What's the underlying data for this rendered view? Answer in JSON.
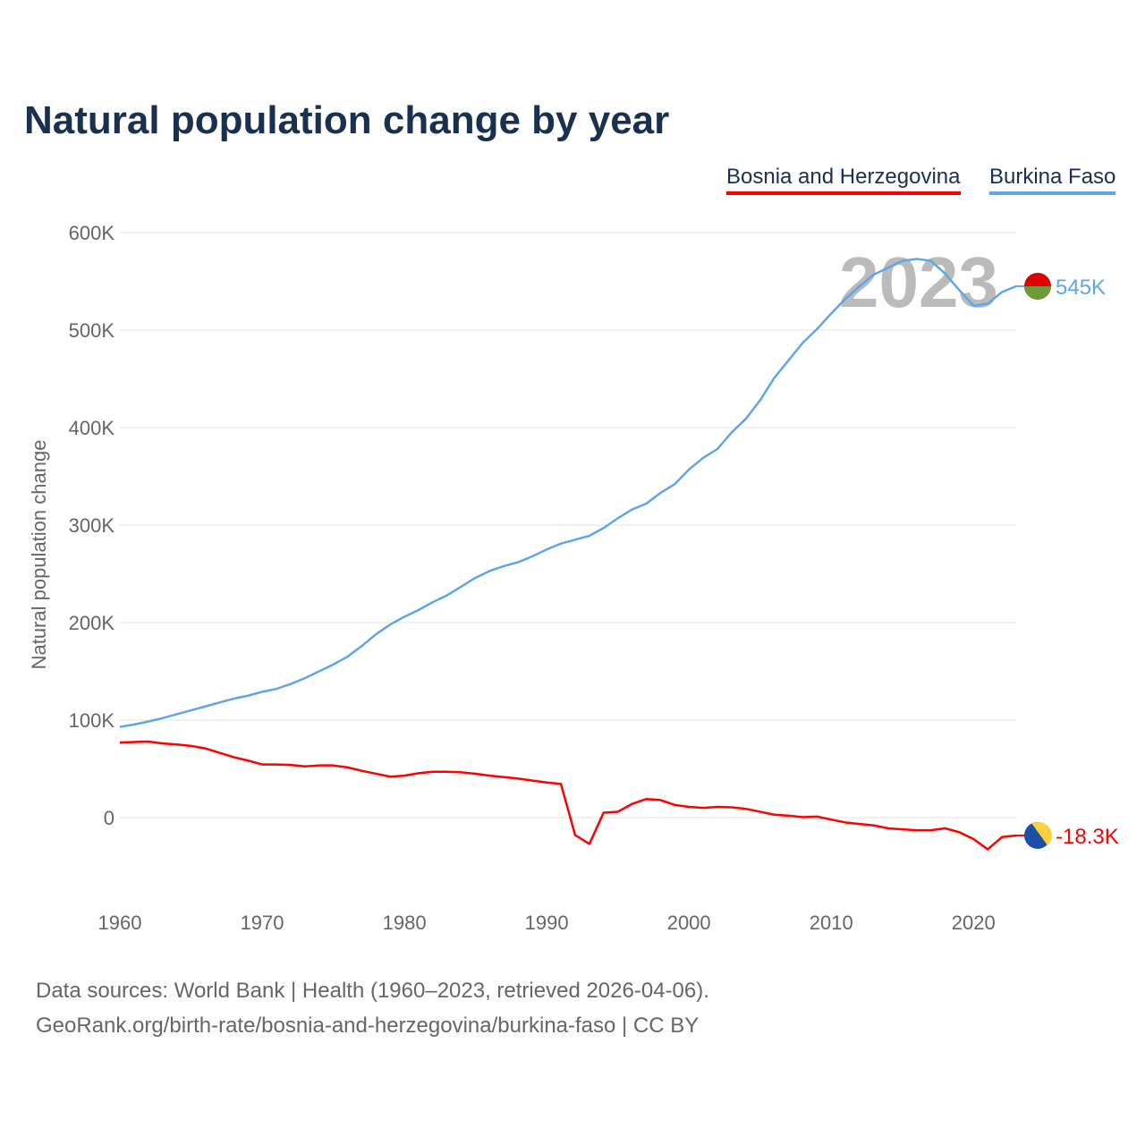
{
  "chart_data": {
    "type": "line",
    "title": "Natural population change by year",
    "ylabel": "Natural population change",
    "xlabel": "",
    "ylim": [
      -90000,
      600000
    ],
    "xlim": [
      1960,
      2023
    ],
    "yticks": [
      {
        "v": 0,
        "label": "0"
      },
      {
        "v": 100000,
        "label": "100K"
      },
      {
        "v": 200000,
        "label": "200K"
      },
      {
        "v": 300000,
        "label": "300K"
      },
      {
        "v": 400000,
        "label": "400K"
      },
      {
        "v": 500000,
        "label": "500K"
      },
      {
        "v": 600000,
        "label": "600K"
      }
    ],
    "xticks": [
      {
        "v": 1960,
        "label": "1960"
      },
      {
        "v": 1970,
        "label": "1970"
      },
      {
        "v": 1980,
        "label": "1980"
      },
      {
        "v": 1990,
        "label": "1990"
      },
      {
        "v": 2000,
        "label": "2000"
      },
      {
        "v": 2010,
        "label": "2010"
      },
      {
        "v": 2020,
        "label": "2020"
      }
    ],
    "year_watermark": "2023",
    "legend_placement": "top-right",
    "x_start": 1960,
    "series": [
      {
        "name": "Bosnia and Herzegovina",
        "color": "#ff0000",
        "end_label": "-18.3K",
        "values": [
          77000,
          77500,
          78000,
          76000,
          75000,
          73500,
          71000,
          66500,
          62000,
          58500,
          54500,
          54500,
          54000,
          52500,
          53500,
          53500,
          51500,
          48000,
          45000,
          42000,
          43000,
          45500,
          47000,
          47000,
          46500,
          45000,
          43000,
          41500,
          40000,
          38000,
          36000,
          34500,
          -18000,
          -27000,
          5000,
          6000,
          14000,
          19000,
          18000,
          13000,
          11000,
          10000,
          11000,
          10500,
          9000,
          6000,
          3000,
          2000,
          500,
          1000,
          -2000,
          -5000,
          -6500,
          -8000,
          -11000,
          -12000,
          -13000,
          -13000,
          -11000,
          -15000,
          -22000,
          -32500,
          -20000,
          -18300
        ]
      },
      {
        "name": "Burkina Faso",
        "color": "#5ea6ea",
        "end_label": "545K",
        "values": [
          93000,
          95500,
          98500,
          102000,
          106000,
          110000,
          114000,
          118000,
          122000,
          125000,
          129000,
          132000,
          137000,
          143000,
          150000,
          157000,
          165000,
          176000,
          188000,
          198000,
          206000,
          213000,
          221000,
          228000,
          237000,
          246000,
          253000,
          258000,
          262000,
          268000,
          275000,
          281000,
          285000,
          289000,
          297000,
          307000,
          316000,
          322000,
          333000,
          342000,
          357000,
          369000,
          378000,
          395000,
          409000,
          428000,
          451000,
          469000,
          487000,
          501000,
          517000,
          532000,
          545000,
          557000,
          564000,
          571000,
          573000,
          571000,
          558000,
          541000,
          525000,
          527000,
          539000,
          545000
        ]
      }
    ]
  },
  "footer": {
    "line1": "Data sources: World Bank | Health (1960–2023, retrieved 2026-04-06).",
    "line2": "GeoRank.org/birth-rate/bosnia-and-herzegovina/burkina-faso | CC BY"
  }
}
